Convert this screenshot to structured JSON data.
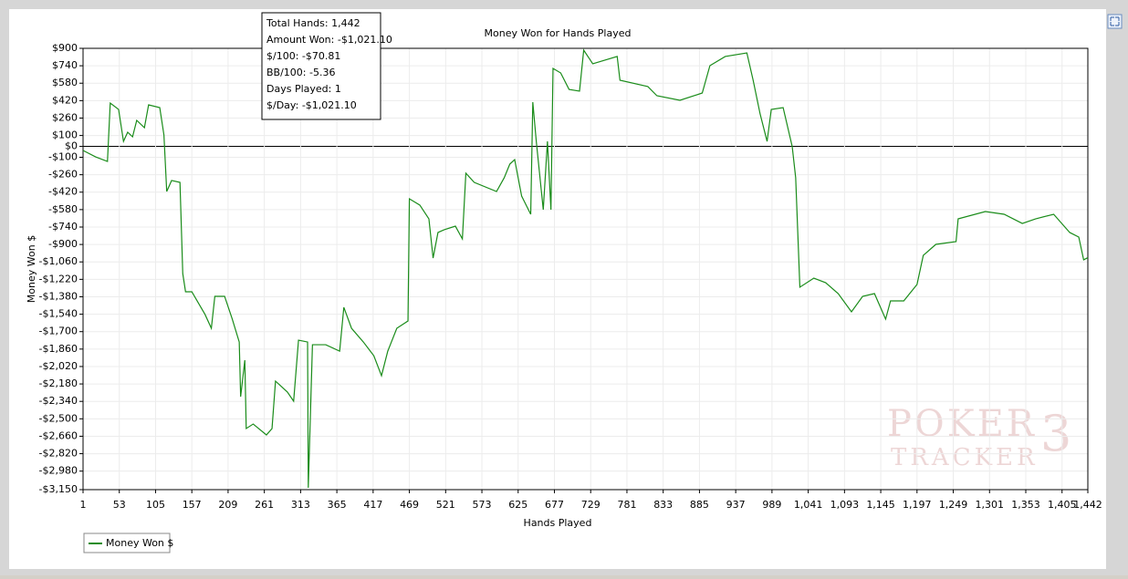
{
  "chart_data": {
    "type": "line",
    "title": "Money Won for Hands Played",
    "x_label": "Hands Played",
    "y_label": "Money Won $",
    "grid": true,
    "legend": "bottom-left",
    "xlim": [
      1,
      1442
    ],
    "ylim": [
      -3150,
      900
    ],
    "xticks": [
      1,
      53,
      105,
      157,
      209,
      261,
      313,
      365,
      417,
      469,
      521,
      573,
      625,
      677,
      729,
      781,
      833,
      885,
      937,
      989,
      {
        "value": 1041,
        "label": "1,041"
      },
      {
        "value": 1093,
        "label": "1,093"
      },
      {
        "value": 1145,
        "label": "1,145"
      },
      {
        "value": 1197,
        "label": "1,197"
      },
      {
        "value": 1249,
        "label": "1,249"
      },
      {
        "value": 1301,
        "label": "1,301"
      },
      {
        "value": 1353,
        "label": "1,353"
      },
      {
        "value": 1405,
        "label": "1,405"
      },
      {
        "value": 1442,
        "label": "1,442"
      }
    ],
    "yticks": [
      {
        "value": 900,
        "label": "$900"
      },
      {
        "value": 740,
        "label": "$740"
      },
      {
        "value": 580,
        "label": "$580"
      },
      {
        "value": 420,
        "label": "$420"
      },
      {
        "value": 260,
        "label": "$260"
      },
      {
        "value": 100,
        "label": "$100"
      },
      {
        "value": 0,
        "label": "$0"
      },
      {
        "value": -100,
        "label": "-$100"
      },
      {
        "value": -260,
        "label": "-$260"
      },
      {
        "value": -420,
        "label": "-$420"
      },
      {
        "value": -580,
        "label": "-$580"
      },
      {
        "value": -740,
        "label": "-$740"
      },
      {
        "value": -900,
        "label": "-$900"
      },
      {
        "value": -1060,
        "label": "-$1,060"
      },
      {
        "value": -1220,
        "label": "-$1,220"
      },
      {
        "value": -1380,
        "label": "-$1,380"
      },
      {
        "value": -1540,
        "label": "-$1,540"
      },
      {
        "value": -1700,
        "label": "-$1,700"
      },
      {
        "value": -1860,
        "label": "-$1,860"
      },
      {
        "value": -2020,
        "label": "-$2,020"
      },
      {
        "value": -2180,
        "label": "-$2,180"
      },
      {
        "value": -2340,
        "label": "-$2,340"
      },
      {
        "value": -2500,
        "label": "-$2,500"
      },
      {
        "value": -2660,
        "label": "-$2,660"
      },
      {
        "value": -2820,
        "label": "-$2,820"
      },
      {
        "value": -2980,
        "label": "-$2,980"
      },
      {
        "value": -3150,
        "label": "-$3,150"
      }
    ],
    "x": [
      1,
      19,
      36,
      40,
      52,
      59,
      65,
      72,
      78,
      89,
      95,
      111,
      117,
      121,
      128,
      140,
      144,
      148,
      157,
      176,
      185,
      190,
      204,
      215,
      225,
      227,
      233,
      235,
      245,
      264,
      272,
      277,
      294,
      303,
      310,
      323,
      324,
      330,
      349,
      369,
      375,
      386,
      403,
      418,
      429,
      438,
      451,
      467,
      469,
      484,
      497,
      503,
      510,
      519,
      535,
      545,
      550,
      562,
      594,
      605,
      613,
      620,
      630,
      643,
      646,
      651,
      661,
      667,
      672,
      675,
      686,
      698,
      713,
      719,
      732,
      767,
      771,
      811,
      824,
      857,
      889,
      900,
      922,
      953,
      962,
      972,
      982,
      988,
      1005,
      1018,
      1023,
      1029,
      1049,
      1066,
      1084,
      1103,
      1119,
      1136,
      1152,
      1159,
      1178,
      1197,
      1206,
      1224,
      1253,
      1256,
      1295,
      1322,
      1348,
      1367,
      1393,
      1416,
      1429,
      1436,
      1442
    ],
    "series": [
      {
        "name": "Money Won $",
        "color": "#1a8c1a",
        "values": [
          -37,
          -96,
          -138,
          398,
          339,
          46,
          130,
          88,
          239,
          172,
          381,
          356,
          105,
          -414,
          -313,
          -330,
          -1167,
          -1334,
          -1334,
          -1543,
          -1669,
          -1376,
          -1376,
          -1585,
          -1795,
          -2297,
          -1962,
          -2589,
          -2548,
          -2648,
          -2589,
          -2154,
          -2254,
          -2338,
          -1778,
          -1795,
          -3133,
          -1820,
          -1820,
          -1879,
          -1477,
          -1669,
          -1795,
          -1921,
          -2104,
          -1879,
          -1669,
          -1602,
          -481,
          -539,
          -665,
          -1025,
          -790,
          -765,
          -732,
          -849,
          -246,
          -330,
          -414,
          -288,
          -163,
          -121,
          -456,
          -623,
          406,
          46,
          -581,
          46,
          -581,
          716,
          674,
          523,
          507,
          883,
          758,
          825,
          607,
          549,
          465,
          423,
          490,
          741,
          825,
          858,
          607,
          298,
          46,
          339,
          356,
          0,
          -288,
          -1292,
          -1209,
          -1251,
          -1351,
          -1518,
          -1376,
          -1351,
          -1585,
          -1418,
          -1418,
          -1267,
          -1000,
          -899,
          -874,
          -665,
          -598,
          -623,
          -707,
          -665,
          -623,
          -790,
          -832,
          -1041,
          -1021.1
        ]
      }
    ],
    "tooltip": [
      "Total Hands: 1,442",
      "Amount Won: -$1,021.10",
      "$/100: -$70.81",
      "BB/100: -5.36",
      "Days Played: 1",
      "$/Day: -$1,021.10"
    ],
    "watermark": [
      "POKER",
      "TRACKER",
      "3"
    ]
  }
}
